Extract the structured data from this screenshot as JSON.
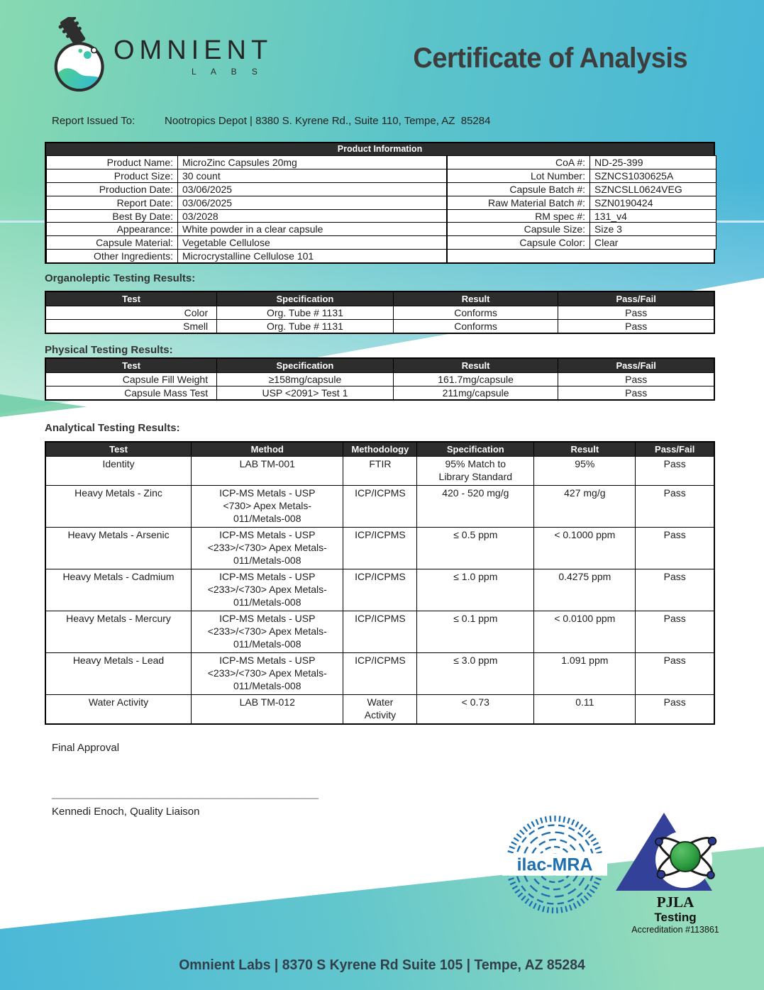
{
  "header": {
    "brand": "OMNIENT",
    "brand_sub": "L A B S",
    "title": "Certificate of Analysis"
  },
  "report_issued": {
    "label": "Report Issued To:",
    "value": "Nootropics Depot | 8380 S. Kyrene Rd., Suite 110, Tempe, AZ  85284"
  },
  "product_info": {
    "title": "Product Information",
    "left_rows": [
      [
        "Product Name:",
        "MicroZinc Capsules 20mg"
      ],
      [
        "Product Size:",
        "30 count"
      ],
      [
        "Production Date:",
        "03/06/2025"
      ],
      [
        "Report Date:",
        "03/06/2025"
      ],
      [
        "Best By Date:",
        "03/2028"
      ],
      [
        "Appearance:",
        "White powder in a clear capsule"
      ],
      [
        "Capsule Material:",
        "Vegetable Cellulose"
      ],
      [
        "Other Ingredients:",
        "Microcrystalline Cellulose 101"
      ]
    ],
    "right_rows": [
      [
        "CoA #:",
        "ND-25-399"
      ],
      [
        "Lot Number:",
        "SZNCS1030625A"
      ],
      [
        "Capsule Batch #:",
        "SZNCSLL0624VEG"
      ],
      [
        "Raw Material Batch #:",
        "SZN0190424"
      ],
      [
        "RM spec #:",
        "131_v4"
      ],
      [
        "Capsule Size:",
        "Size 3"
      ],
      [
        "Capsule Color:",
        "Clear"
      ]
    ]
  },
  "organoleptic": {
    "title": "Organoleptic Testing Results:",
    "headers": [
      "Test",
      "Specification",
      "Result",
      "Pass/Fail"
    ],
    "rows": [
      [
        "Color",
        "Org. Tube # 1131",
        "Conforms",
        "Pass"
      ],
      [
        "Smell",
        "Org. Tube # 1131",
        "Conforms",
        "Pass"
      ]
    ]
  },
  "physical": {
    "title": "Physical Testing Results:",
    "headers": [
      "Test",
      "Specification",
      "Result",
      "Pass/Fail"
    ],
    "rows": [
      [
        "Capsule Fill Weight",
        "≥158mg/capsule",
        "161.7mg/capsule",
        "Pass"
      ],
      [
        "Capsule Mass Test",
        "USP <2091> Test 1",
        "211mg/capsule",
        "Pass"
      ]
    ]
  },
  "analytical": {
    "title": "Analytical Testing Results:",
    "headers": [
      "Test",
      "Method",
      "Methodology",
      "Specification",
      "Result",
      "Pass/Fail"
    ],
    "rows": [
      [
        "Identity",
        "LAB TM-001",
        "FTIR",
        "95% Match to\nLibrary Standard",
        "95%",
        "Pass"
      ],
      [
        "Heavy Metals - Zinc",
        "ICP-MS Metals - USP\n<730> Apex Metals-\n011/Metals-008",
        "ICP/ICPMS",
        "420 - 520 mg/g",
        "427 mg/g",
        "Pass"
      ],
      [
        "Heavy Metals - Arsenic",
        "ICP-MS Metals - USP\n<233>/<730> Apex Metals-\n011/Metals-008",
        "ICP/ICPMS",
        "≤ 0.5 ppm",
        "< 0.1000 ppm",
        "Pass"
      ],
      [
        "Heavy Metals - Cadmium",
        "ICP-MS Metals - USP\n<233>/<730> Apex Metals-\n011/Metals-008",
        "ICP/ICPMS",
        "≤ 1.0 ppm",
        "0.4275 ppm",
        "Pass"
      ],
      [
        "Heavy Metals - Mercury",
        "ICP-MS Metals - USP\n<233>/<730> Apex Metals-\n011/Metals-008",
        "ICP/ICPMS",
        "≤ 0.1 ppm",
        "< 0.0100 ppm",
        "Pass"
      ],
      [
        "Heavy Metals - Lead",
        "ICP-MS Metals - USP\n<233>/<730> Apex Metals-\n011/Metals-008",
        "ICP/ICPMS",
        "≤ 3.0 ppm",
        "1.091 ppm",
        "Pass"
      ],
      [
        "Water Activity",
        "LAB TM-012",
        "Water\nActivity",
        "< 0.73",
        "0.11",
        "Pass"
      ]
    ]
  },
  "approval": {
    "label": "Final Approval",
    "signature_line": "____________________________________________________",
    "signatory": "Kennedi Enoch, Quality Liaison"
  },
  "badges": {
    "ilac_label": "ilac-MRA",
    "pjla_name": "PJLA",
    "pjla_sub": "Testing",
    "pjla_accreditation": "Accreditation #113861"
  },
  "footer": {
    "text": "Omnient Labs | 8370 S Kyrene Rd Suite 105 | Tempe, AZ 85284"
  },
  "colors": {
    "header_bar": "#2d2d2d",
    "gradient_green": "#87d9b1",
    "gradient_blue": "#45b4da",
    "accent_line_blue": "#c9e9f5",
    "ilac_blue": "#1e6fb0",
    "pjla_blue": "#344199",
    "atom_green": "#2f9e41",
    "footer_text": "#323f4b"
  }
}
